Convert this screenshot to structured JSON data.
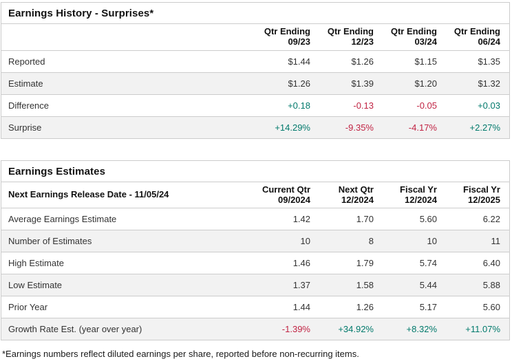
{
  "colors": {
    "positive": "#00796B",
    "negative": "#C12343",
    "border": "#cccccc",
    "alt_row": "#f2f2f2",
    "heading": "#111111",
    "text": "#333333"
  },
  "history": {
    "title": "Earnings History - Surprises*",
    "columns": [
      {
        "line1": "Qtr Ending",
        "line2": "09/23"
      },
      {
        "line1": "Qtr Ending",
        "line2": "12/23"
      },
      {
        "line1": "Qtr Ending",
        "line2": "03/24"
      },
      {
        "line1": "Qtr Ending",
        "line2": "06/24"
      }
    ],
    "rows": [
      {
        "label": "Reported",
        "values": [
          "$1.44",
          "$1.26",
          "$1.15",
          "$1.35"
        ]
      },
      {
        "label": "Estimate",
        "values": [
          "$1.26",
          "$1.39",
          "$1.20",
          "$1.32"
        ]
      },
      {
        "label": "Difference",
        "values": [
          "+0.18",
          "-0.13",
          "-0.05",
          "+0.03"
        ]
      },
      {
        "label": "Surprise",
        "values": [
          "+14.29%",
          "-9.35%",
          "-4.17%",
          "+2.27%"
        ]
      }
    ]
  },
  "estimates": {
    "title": "Earnings Estimates",
    "release_label": "Next Earnings Release Date - 11/05/24",
    "columns": [
      {
        "line1": "Current Qtr",
        "line2": "09/2024"
      },
      {
        "line1": "Next Qtr",
        "line2": "12/2024"
      },
      {
        "line1": "Fiscal Yr",
        "line2": "12/2024"
      },
      {
        "line1": "Fiscal Yr",
        "line2": "12/2025"
      }
    ],
    "rows": [
      {
        "label": "Average Earnings Estimate",
        "values": [
          "1.42",
          "1.70",
          "5.60",
          "6.22"
        ]
      },
      {
        "label": "Number of Estimates",
        "values": [
          "10",
          "8",
          "10",
          "11"
        ]
      },
      {
        "label": "High Estimate",
        "values": [
          "1.46",
          "1.79",
          "5.74",
          "6.40"
        ]
      },
      {
        "label": "Low Estimate",
        "values": [
          "1.37",
          "1.58",
          "5.44",
          "5.88"
        ]
      },
      {
        "label": "Prior Year",
        "values": [
          "1.44",
          "1.26",
          "5.17",
          "5.60"
        ]
      },
      {
        "label": "Growth Rate Est. (year over year)",
        "values": [
          "-1.39%",
          "+34.92%",
          "+8.32%",
          "+11.07%"
        ]
      }
    ]
  },
  "footnote": "*Earnings numbers reflect diluted earnings per share, reported before non-recurring items."
}
